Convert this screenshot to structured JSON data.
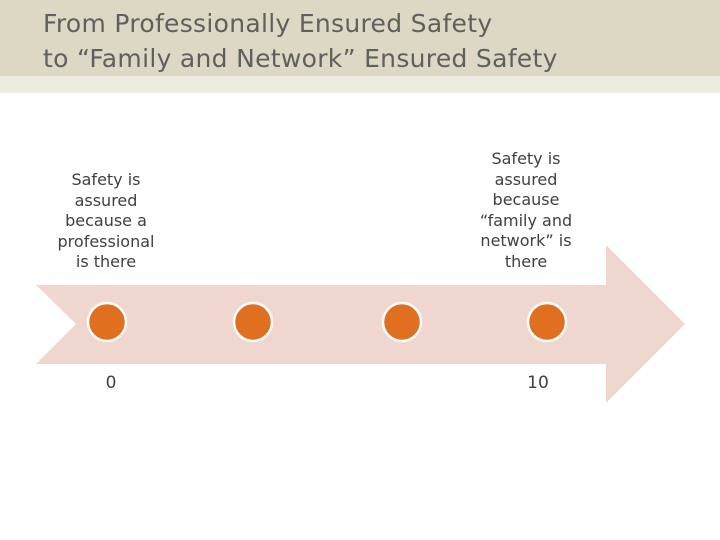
{
  "title": {
    "line1": "From Professionally Ensured Safety",
    "line2": "to “Family and Network” Ensured Safety"
  },
  "colors": {
    "title_band": "#ddd8c4",
    "arrow": "#efd6cf",
    "marker": "#e07020",
    "text": "#404040"
  },
  "diagram": {
    "type": "scale-arrow",
    "marker_count": 4,
    "left_label": [
      "Safety is",
      "assured",
      "because a",
      "professional",
      "is there"
    ],
    "right_label": [
      "Safety is",
      "assured",
      "because",
      "“family and",
      "network” is",
      "there"
    ],
    "left_value": "0",
    "right_value": "10"
  }
}
